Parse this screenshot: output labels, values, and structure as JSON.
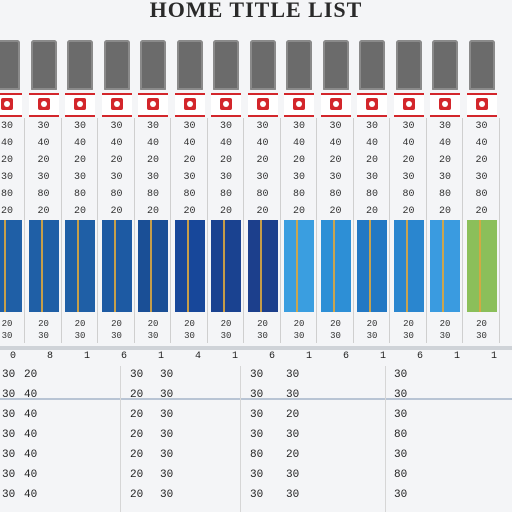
{
  "title": "HOME TITLE LIST",
  "columns": [
    {
      "cells": [
        "30",
        "40",
        "20",
        "30",
        "80",
        "20"
      ],
      "foot": [
        "20",
        "30"
      ],
      "bar": "#1f5fa6"
    },
    {
      "cells": [
        "30",
        "40",
        "20",
        "30",
        "80",
        "20"
      ],
      "foot": [
        "20",
        "30"
      ],
      "bar": "#1f5fa6"
    },
    {
      "cells": [
        "30",
        "40",
        "20",
        "30",
        "80",
        "20"
      ],
      "foot": [
        "20",
        "30"
      ],
      "bar": "#1f5fa6"
    },
    {
      "cells": [
        "30",
        "40",
        "20",
        "30",
        "80",
        "20"
      ],
      "foot": [
        "20",
        "30"
      ],
      "bar": "#1d5aa3"
    },
    {
      "cells": [
        "30",
        "40",
        "20",
        "30",
        "80",
        "20"
      ],
      "foot": [
        "20",
        "30"
      ],
      "bar": "#1a4f96"
    },
    {
      "cells": [
        "30",
        "40",
        "20",
        "30",
        "80",
        "20"
      ],
      "foot": [
        "20",
        "30"
      ],
      "bar": "#17479a"
    },
    {
      "cells": [
        "30",
        "40",
        "20",
        "30",
        "80",
        "20"
      ],
      "foot": [
        "20",
        "30"
      ],
      "bar": "#1a4290"
    },
    {
      "cells": [
        "30",
        "40",
        "20",
        "30",
        "80",
        "20"
      ],
      "foot": [
        "20",
        "30"
      ],
      "bar": "#1c3f8c"
    },
    {
      "cells": [
        "30",
        "40",
        "20",
        "30",
        "80",
        "20"
      ],
      "foot": [
        "20",
        "30"
      ],
      "bar": "#3a9ee0"
    },
    {
      "cells": [
        "30",
        "40",
        "20",
        "30",
        "80",
        "20"
      ],
      "foot": [
        "20",
        "30"
      ],
      "bar": "#2d8fd6"
    },
    {
      "cells": [
        "30",
        "40",
        "20",
        "30",
        "80",
        "20"
      ],
      "foot": [
        "20",
        "30"
      ],
      "bar": "#2278c4"
    },
    {
      "cells": [
        "30",
        "40",
        "20",
        "30",
        "80",
        "20"
      ],
      "foot": [
        "20",
        "30"
      ],
      "bar": "#2a86cf"
    },
    {
      "cells": [
        "30",
        "40",
        "20",
        "30",
        "80",
        "20"
      ],
      "foot": [
        "20",
        "30"
      ],
      "bar": "#3a9be0"
    },
    {
      "cells": [
        "30",
        "40",
        "20",
        "30",
        "80",
        "20"
      ],
      "foot": [
        "20",
        "30"
      ],
      "bar": "#8bbf5a"
    }
  ],
  "ruler": [
    "0",
    "8",
    "1",
    "6",
    "1",
    "4",
    "1",
    "6",
    "1",
    "6",
    "1",
    "6",
    "1",
    "1"
  ],
  "table_rows": [
    [
      "30",
      "20",
      "30",
      "30",
      "30",
      "30",
      "30"
    ],
    [
      "30",
      "40",
      "20",
      "30",
      "30",
      "30",
      "30"
    ],
    [
      "30",
      "40",
      "20",
      "30",
      "30",
      "20",
      "30"
    ],
    [
      "30",
      "40",
      "20",
      "30",
      "30",
      "30",
      "80"
    ],
    [
      "30",
      "40",
      "20",
      "30",
      "80",
      "20",
      "30"
    ],
    [
      "30",
      "40",
      "20",
      "30",
      "30",
      "30",
      "80"
    ],
    [
      "30",
      "40",
      "20",
      "30",
      "30",
      "30",
      "30"
    ]
  ]
}
